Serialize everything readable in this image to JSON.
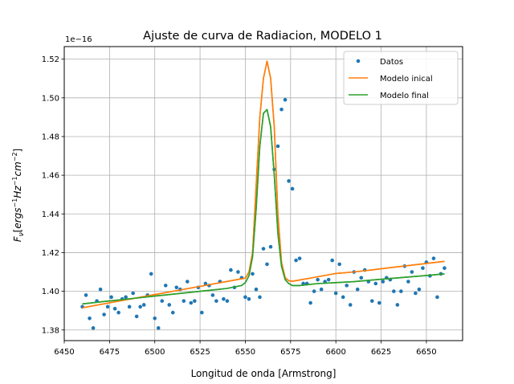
{
  "chart_data": {
    "type": "line",
    "title": "Ajuste de curva de Radiacion, MODELO 1",
    "xlabel": "Longitud de onda [Armstrong]",
    "ylabel": "F_ν[ergs⁻¹Hz⁻¹cm⁻²]",
    "offset_text": "1e−16",
    "xlim": [
      6450,
      6670
    ],
    "ylim": [
      1.3745,
      1.5265
    ],
    "grid": true,
    "legend_position": "upper right",
    "x_ticks": [
      6450,
      6475,
      6500,
      6525,
      6550,
      6575,
      6600,
      6625,
      6650
    ],
    "y_ticks": [
      1.38,
      1.4,
      1.42,
      1.44,
      1.46,
      1.48,
      1.5,
      1.52
    ],
    "y_tick_labels": [
      "1.38",
      "1.40",
      "1.42",
      "1.44",
      "1.46",
      "1.48",
      "1.50",
      "1.52"
    ],
    "series": [
      {
        "name": "Datos",
        "kind": "scatter",
        "color": "#1f77b4",
        "x": [
          6460,
          6462,
          6464,
          6466,
          6468,
          6470,
          6472,
          6474,
          6476,
          6478,
          6480,
          6482,
          6484,
          6486,
          6488,
          6490,
          6492,
          6494,
          6496,
          6498,
          6500,
          6502,
          6504,
          6506,
          6508,
          6510,
          6512,
          6514,
          6516,
          6518,
          6520,
          6522,
          6524,
          6526,
          6528,
          6530,
          6532,
          6534,
          6536,
          6538,
          6540,
          6542,
          6544,
          6546,
          6548,
          6550,
          6552,
          6554,
          6556,
          6558,
          6560,
          6562,
          6564,
          6566,
          6568,
          6570,
          6572,
          6574,
          6576,
          6578,
          6580,
          6582,
          6584,
          6586,
          6588,
          6590,
          6592,
          6594,
          6596,
          6598,
          6600,
          6602,
          6604,
          6606,
          6608,
          6610,
          6612,
          6614,
          6616,
          6618,
          6620,
          6622,
          6624,
          6626,
          6628,
          6630,
          6632,
          6634,
          6636,
          6638,
          6640,
          6642,
          6644,
          6646,
          6648,
          6650,
          6652,
          6654,
          6656,
          6658,
          6660
        ],
        "y": [
          1.392,
          1.398,
          1.386,
          1.381,
          1.395,
          1.401,
          1.388,
          1.392,
          1.397,
          1.391,
          1.389,
          1.396,
          1.397,
          1.392,
          1.399,
          1.387,
          1.392,
          1.393,
          1.398,
          1.409,
          1.386,
          1.381,
          1.395,
          1.403,
          1.393,
          1.389,
          1.402,
          1.401,
          1.395,
          1.405,
          1.394,
          1.395,
          1.402,
          1.389,
          1.404,
          1.403,
          1.398,
          1.395,
          1.405,
          1.396,
          1.395,
          1.411,
          1.402,
          1.41,
          1.407,
          1.397,
          1.396,
          1.409,
          1.401,
          1.397,
          1.422,
          1.414,
          1.423,
          1.463,
          1.475,
          1.494,
          1.499,
          1.457,
          1.453,
          1.416,
          1.417,
          1.404,
          1.404,
          1.394,
          1.4,
          1.406,
          1.401,
          1.405,
          1.406,
          1.416,
          1.399,
          1.414,
          1.397,
          1.403,
          1.393,
          1.41,
          1.401,
          1.407,
          1.411,
          1.405,
          1.395,
          1.404,
          1.394,
          1.405,
          1.407,
          1.406,
          1.4,
          1.393,
          1.4,
          1.413,
          1.405,
          1.41,
          1.399,
          1.401,
          1.412,
          1.415,
          1.408,
          1.417,
          1.397,
          1.409,
          1.412
        ]
      },
      {
        "name": "Modelo inical",
        "kind": "line",
        "color": "#ff7f0e",
        "x": [
          6460,
          6470,
          6480,
          6490,
          6500,
          6510,
          6520,
          6530,
          6540,
          6550,
          6552,
          6554,
          6556,
          6558,
          6560,
          6562,
          6564,
          6566,
          6568,
          6570,
          6572,
          6574,
          6576,
          6580,
          6590,
          6600,
          6610,
          6620,
          6630,
          6640,
          6650,
          6660
        ],
        "y": [
          1.3915,
          1.3932,
          1.3949,
          1.3966,
          1.3983,
          1.4,
          1.4017,
          1.4034,
          1.4051,
          1.4068,
          1.41,
          1.42,
          1.455,
          1.49,
          1.51,
          1.519,
          1.51,
          1.485,
          1.44,
          1.415,
          1.407,
          1.4055,
          1.4052,
          1.4058,
          1.4075,
          1.4092,
          1.41,
          1.4111,
          1.4122,
          1.4133,
          1.4144,
          1.4155
        ]
      },
      {
        "name": "Modelo final",
        "kind": "line",
        "color": "#2ca02c",
        "x": [
          6460,
          6470,
          6480,
          6490,
          6500,
          6510,
          6520,
          6530,
          6540,
          6548,
          6550,
          6552,
          6554,
          6556,
          6558,
          6560,
          6562,
          6564,
          6566,
          6568,
          6570,
          6572,
          6574,
          6576,
          6580,
          6590,
          6600,
          6610,
          6620,
          6630,
          6640,
          6650,
          6660
        ],
        "y": [
          1.3935,
          1.3945,
          1.3955,
          1.3965,
          1.3975,
          1.3985,
          1.3995,
          1.4005,
          1.4015,
          1.403,
          1.4045,
          1.408,
          1.418,
          1.443,
          1.475,
          1.492,
          1.494,
          1.485,
          1.46,
          1.43,
          1.413,
          1.406,
          1.404,
          1.403,
          1.403,
          1.404,
          1.4045,
          1.405,
          1.4058,
          1.4066,
          1.4074,
          1.4082,
          1.409
        ]
      }
    ]
  }
}
